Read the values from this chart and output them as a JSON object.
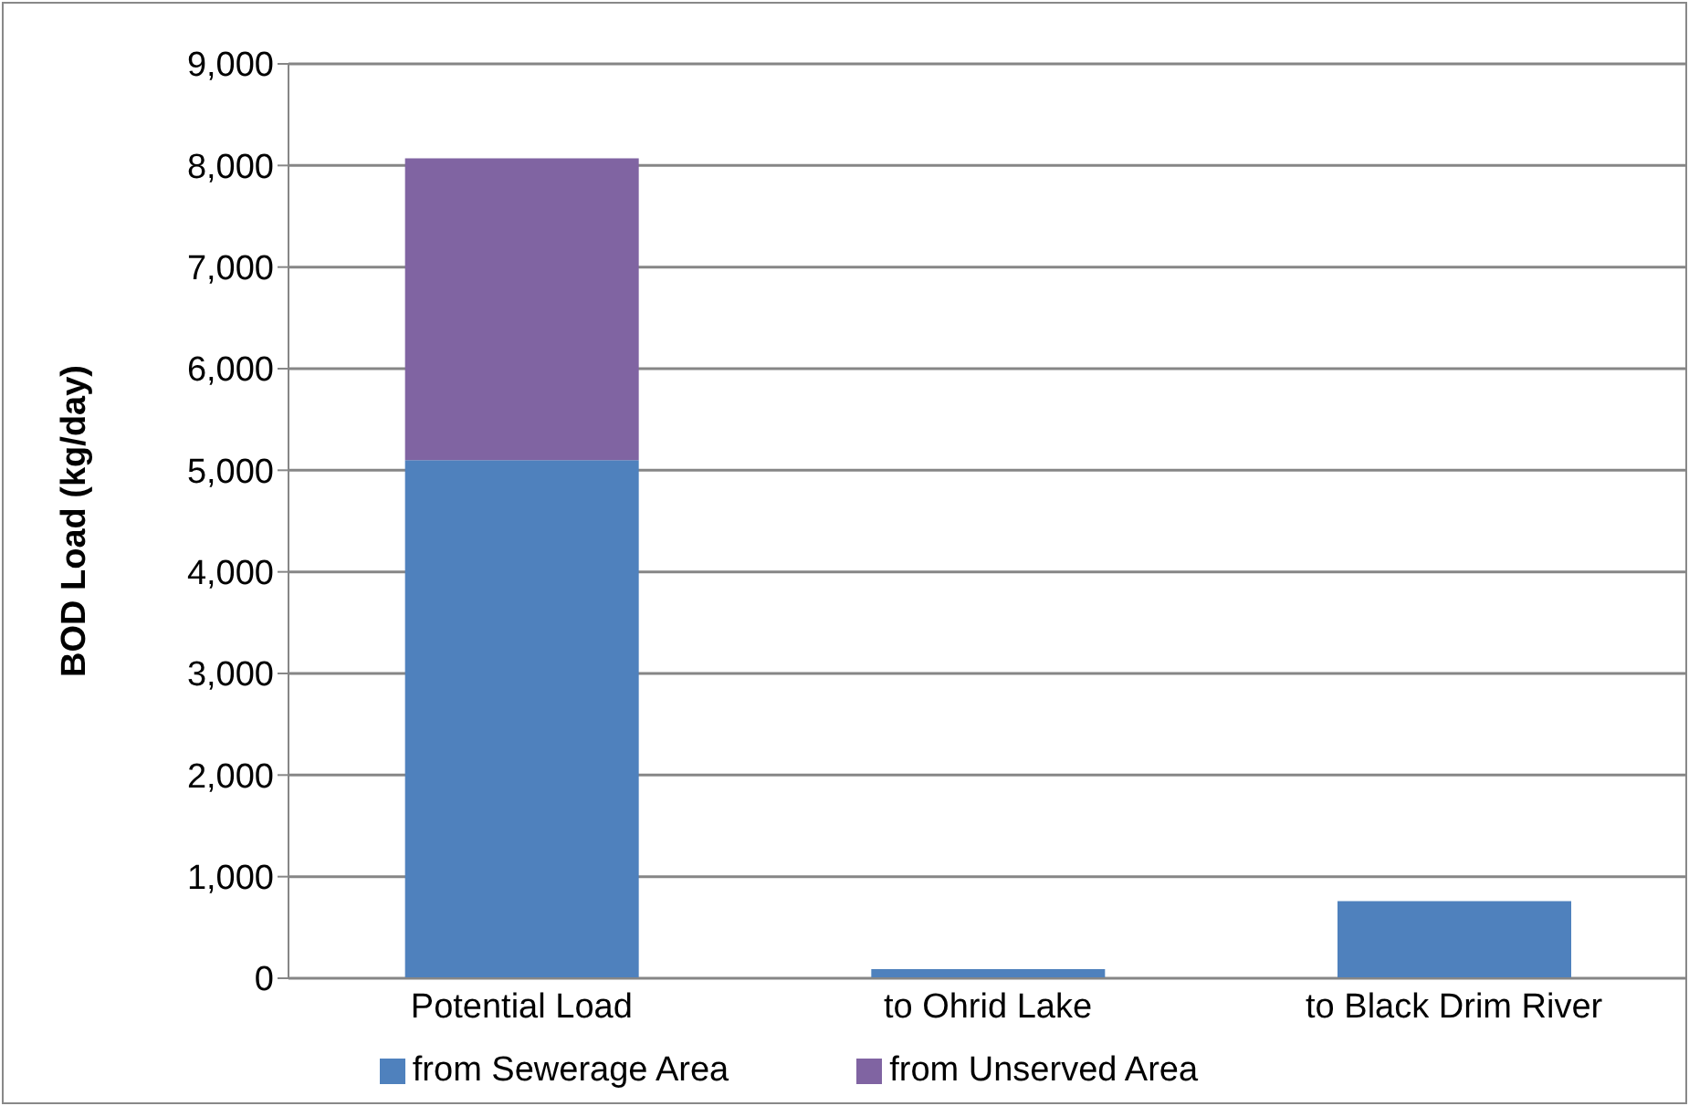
{
  "chart_data": {
    "type": "bar",
    "ylabel": "BOD Load (kg/day)",
    "categories": [
      "Potential Load",
      "to Ohrid Lake",
      "to Black Drim River"
    ],
    "series": [
      {
        "name": "from Sewerage Area",
        "color": "#4f81bd",
        "values": [
          5100,
          90,
          760
        ]
      },
      {
        "name": "from Unserved Area",
        "color": "#8064a2",
        "values": [
          2970,
          null,
          null
        ]
      }
    ],
    "stacked": true,
    "ylim": [
      0,
      9000
    ],
    "yticks": [
      0,
      {
        "value": 1000,
        "label": "1,000"
      },
      {
        "value": 2000,
        "label": "2,000"
      },
      {
        "value": 3000,
        "label": "3,000"
      },
      {
        "value": 4000,
        "label": "4,000"
      },
      {
        "value": 5000,
        "label": "5,000"
      },
      {
        "value": 6000,
        "label": "6,000"
      },
      {
        "value": 7000,
        "label": "7,000"
      },
      {
        "value": 8000,
        "label": "8,000"
      },
      {
        "value": 9000,
        "label": "9,000"
      }
    ],
    "grid": "y",
    "legend": "bottom"
  }
}
